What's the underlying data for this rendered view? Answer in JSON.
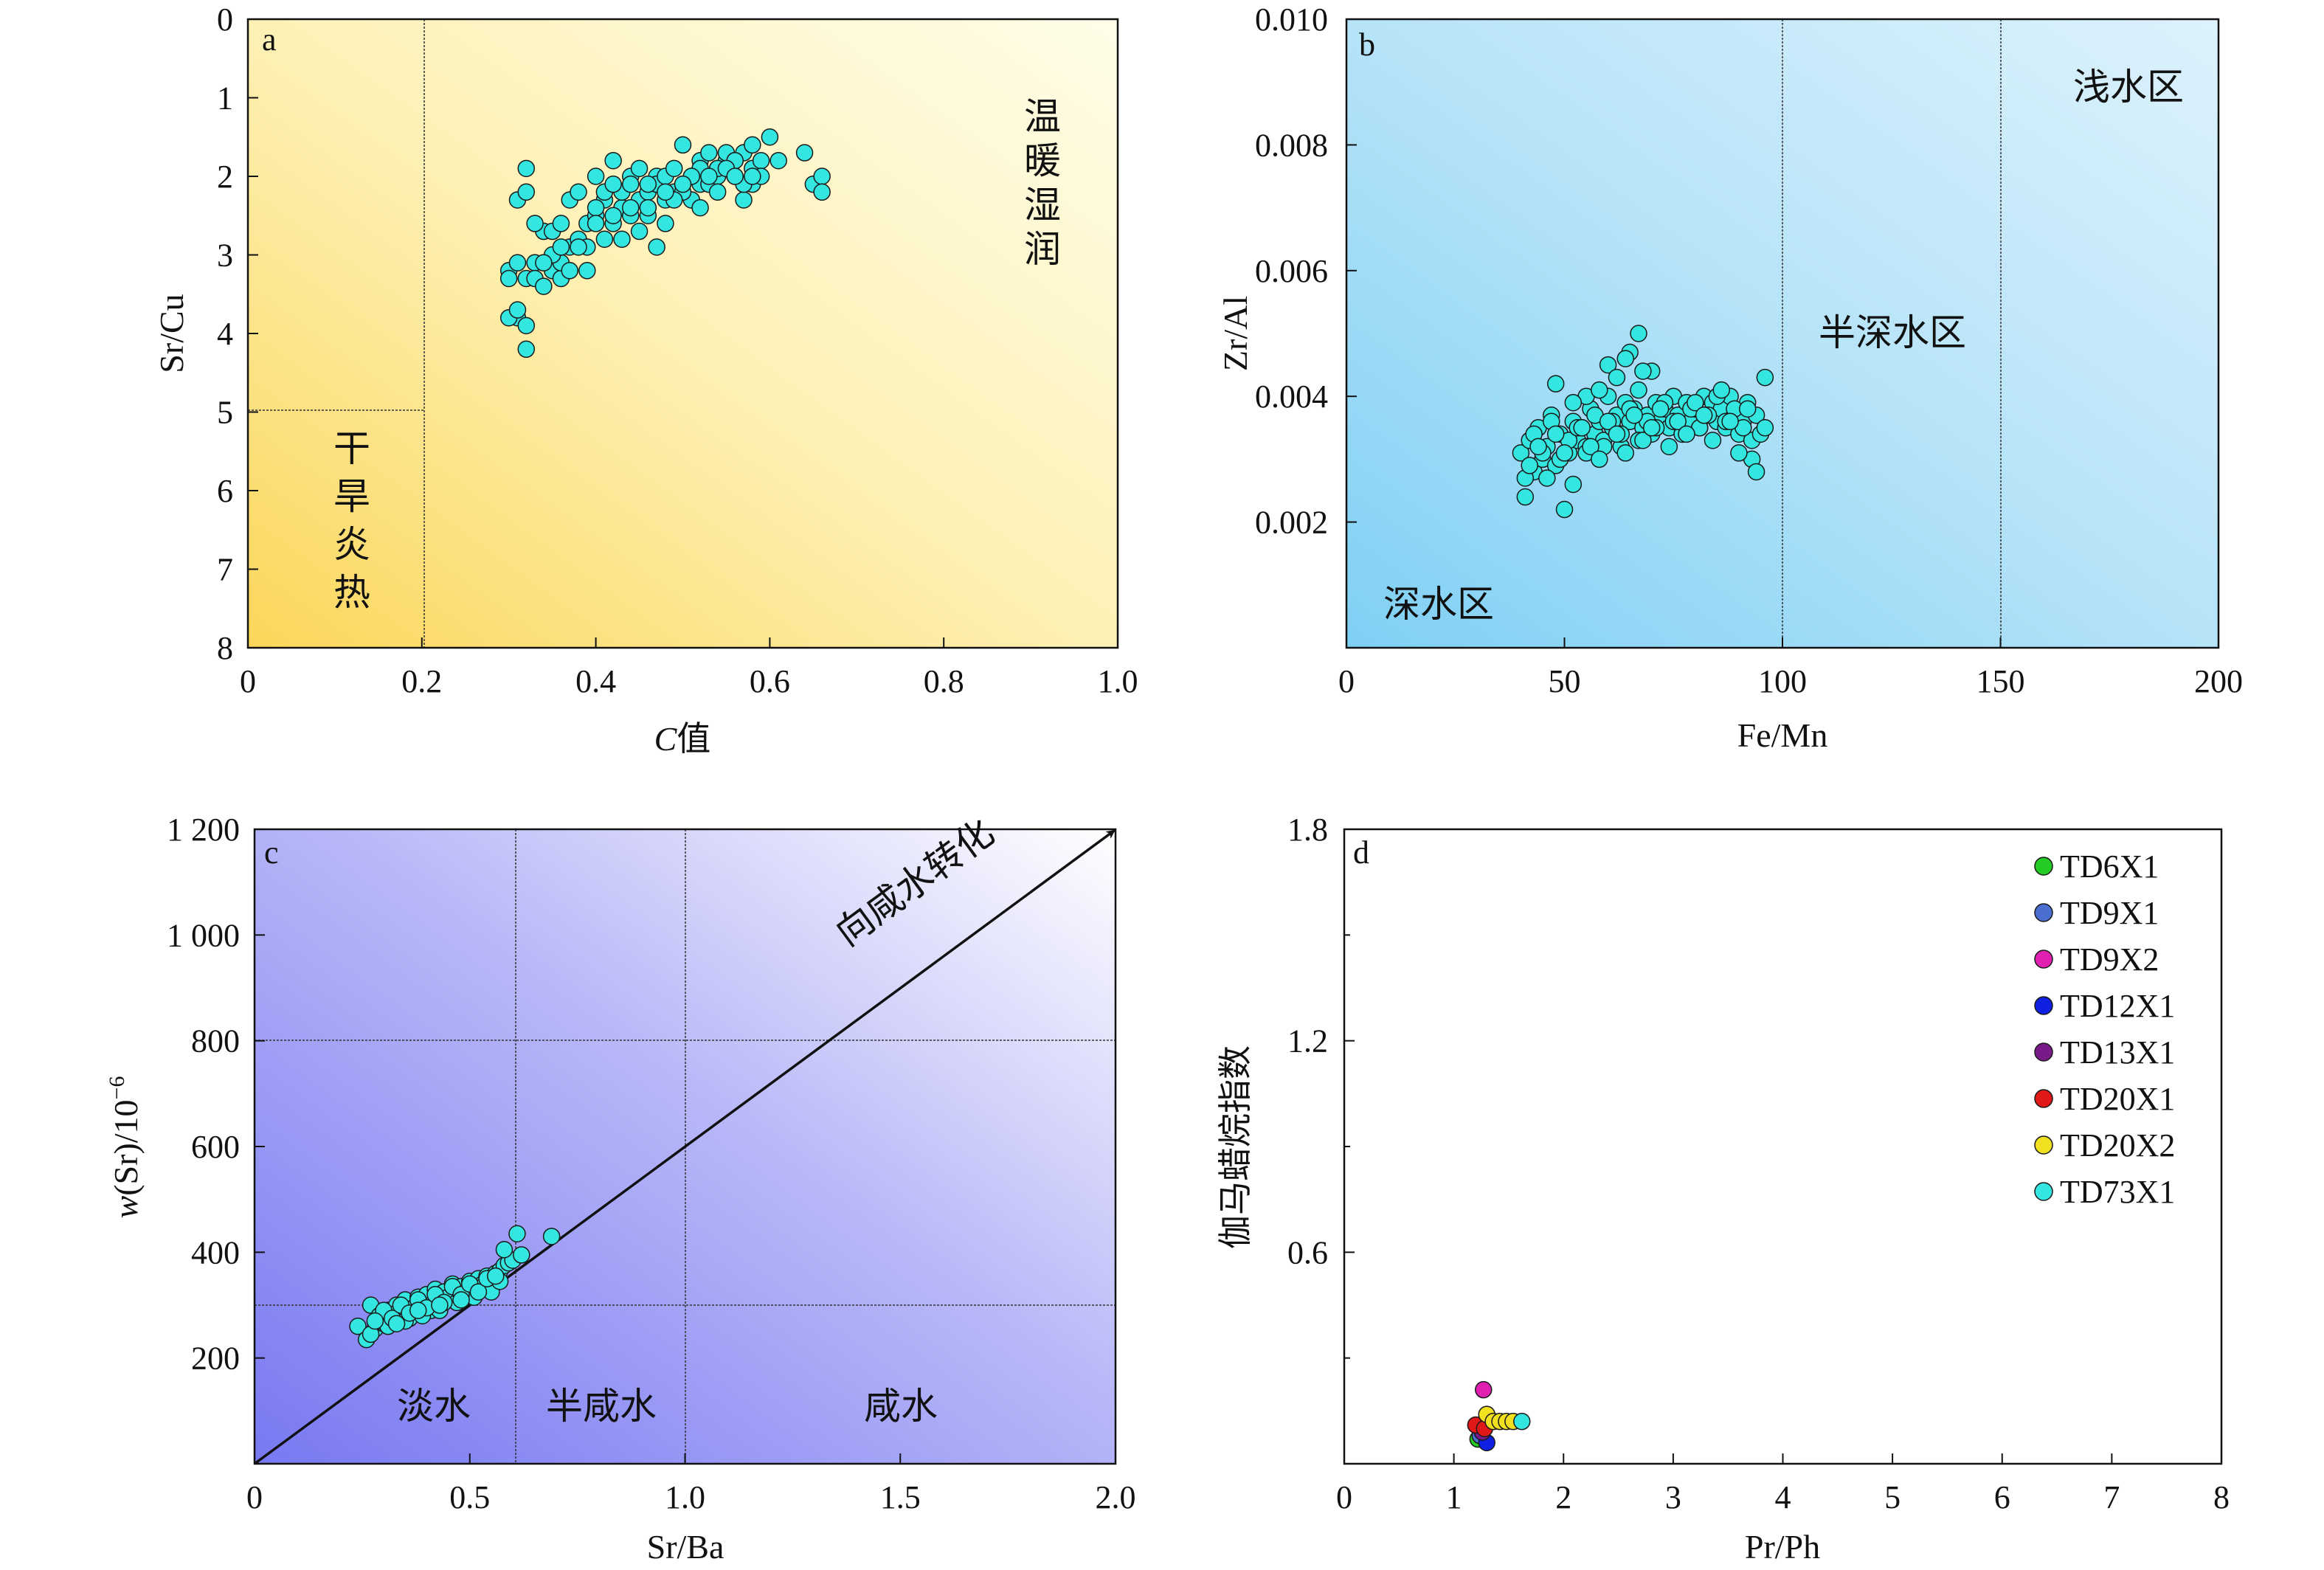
{
  "chart_data": [
    {
      "panel": "a",
      "type": "scatter",
      "xlabel_italic": "C",
      "xlabel_rest": "值",
      "ylabel": "Sr/Cu",
      "xlim": [
        0,
        1.0
      ],
      "ylim": [
        8,
        0
      ],
      "y_inverted": true,
      "xticks": [
        "0",
        "0.2",
        "0.4",
        "0.6",
        "0.8",
        "1.0"
      ],
      "yticks": [
        "0",
        "1",
        "2",
        "3",
        "4",
        "5",
        "6",
        "7",
        "8"
      ],
      "zones": [
        "温暖湿润",
        "干旱炎热"
      ],
      "point_color": "#33e6e0",
      "background": [
        "#fbd65a",
        "#fdf1b6",
        "#fffde9"
      ],
      "series": [
        {
          "x": [
            0.3,
            0.31,
            0.32,
            0.31,
            0.33,
            0.3,
            0.31,
            0.32,
            0.32,
            0.34,
            0.35,
            0.35,
            0.36,
            0.36,
            0.37,
            0.37,
            0.38,
            0.39,
            0.39,
            0.4,
            0.4,
            0.41,
            0.41,
            0.42,
            0.42,
            0.43,
            0.43,
            0.44,
            0.44,
            0.45,
            0.45,
            0.46,
            0.46,
            0.47,
            0.47,
            0.48,
            0.48,
            0.49,
            0.49,
            0.5,
            0.5,
            0.51,
            0.51,
            0.52,
            0.52,
            0.53,
            0.53,
            0.54,
            0.54,
            0.55,
            0.55,
            0.56,
            0.56,
            0.57,
            0.57,
            0.58,
            0.58,
            0.59,
            0.6,
            0.61,
            0.64,
            0.65,
            0.66,
            0.66,
            0.33,
            0.34,
            0.36,
            0.38,
            0.4,
            0.42,
            0.44,
            0.46,
            0.48,
            0.5,
            0.52,
            0.54,
            0.56,
            0.58,
            0.31,
            0.32,
            0.35,
            0.37,
            0.39,
            0.41,
            0.43,
            0.45,
            0.47,
            0.49,
            0.51,
            0.53,
            0.55,
            0.57,
            0.59,
            0.34,
            0.36,
            0.38,
            0.4,
            0.42,
            0.44,
            0.46,
            0.48,
            0.5,
            0.52,
            0.54,
            0.56,
            0.58,
            0.32,
            0.3,
            0.33
          ],
          "y": [
            3.2,
            3.1,
            3.3,
            3.8,
            3.1,
            3.8,
            2.3,
            2.2,
            1.9,
            2.7,
            2.7,
            3.2,
            3.3,
            2.6,
            2.3,
            2.9,
            2.2,
            2.6,
            3.2,
            2.0,
            2.5,
            2.3,
            2.2,
            1.8,
            2.6,
            2.4,
            2.2,
            2.0,
            2.1,
            1.9,
            2.3,
            2.5,
            2.2,
            2.0,
            2.1,
            2.0,
            2.6,
            2.2,
            1.9,
            2.1,
            1.6,
            2.0,
            2.3,
            1.8,
            2.1,
            1.7,
            2.1,
            1.9,
            2.0,
            1.8,
            1.7,
            2.0,
            1.8,
            1.7,
            2.3,
            1.9,
            2.1,
            1.8,
            1.5,
            1.8,
            1.7,
            2.1,
            2.0,
            2.2,
            3.3,
            3.4,
            3.1,
            2.8,
            2.4,
            2.1,
            2.5,
            2.4,
            2.3,
            2.2,
            1.9,
            1.9,
            1.8,
            1.6,
            3.7,
            3.9,
            3.0,
            3.2,
            2.9,
            2.8,
            2.8,
            2.7,
            2.9,
            2.3,
            2.0,
            2.0,
            1.9,
            2.1,
            2.0,
            3.1,
            2.9,
            2.9,
            2.6,
            2.5,
            2.4,
            2.1,
            2.2,
            2.1,
            2.4,
            2.2,
            2.0,
            2.0,
            4.2,
            3.3,
            2.6
          ]
        }
      ]
    },
    {
      "panel": "b",
      "type": "scatter",
      "xlabel": "Fe/Mn",
      "ylabel": "Zr/Al",
      "xlim": [
        0,
        200
      ],
      "ylim": [
        0,
        0.01
      ],
      "xticks": [
        "0",
        "50",
        "100",
        "150",
        "200"
      ],
      "yticks": [
        "0.002",
        "0.004",
        "0.006",
        "0.008",
        "0.010"
      ],
      "zones": [
        "深水区",
        "半深水区",
        "浅水区"
      ],
      "point_color": "#33e6e0",
      "background": [
        "#7fd0f4",
        "#b6e3f8",
        "#ddf2fc"
      ],
      "series": [
        {
          "x": [
            40,
            41,
            42,
            43,
            44,
            45,
            46,
            47,
            48,
            49,
            50,
            51,
            52,
            53,
            54,
            55,
            56,
            57,
            58,
            59,
            60,
            61,
            62,
            63,
            64,
            65,
            66,
            67,
            68,
            69,
            70,
            71,
            72,
            73,
            74,
            75,
            76,
            77,
            78,
            79,
            80,
            81,
            82,
            83,
            84,
            85,
            86,
            87,
            88,
            89,
            90,
            91,
            92,
            93,
            94,
            95,
            96,
            41,
            43,
            45,
            47,
            49,
            51,
            53,
            55,
            57,
            59,
            61,
            63,
            65,
            67,
            69,
            71,
            73,
            75,
            77,
            79,
            81,
            83,
            85,
            87,
            89,
            91,
            93,
            42,
            44,
            46,
            48,
            50,
            52,
            54,
            56,
            58,
            60,
            62,
            64,
            66,
            68,
            70,
            72,
            74,
            76,
            78,
            80,
            82,
            84,
            86,
            88,
            90,
            92,
            94,
            96,
            48,
            55,
            60,
            62,
            65,
            67,
            70,
            52,
            58,
            64,
            68
          ],
          "y": [
            0.0031,
            0.0024,
            0.0033,
            0.0028,
            0.0035,
            0.003,
            0.0032,
            0.0037,
            0.0029,
            0.0034,
            0.0022,
            0.0031,
            0.0036,
            0.0033,
            0.0035,
            0.0032,
            0.0038,
            0.0034,
            0.0036,
            0.0033,
            0.004,
            0.0035,
            0.0037,
            0.0032,
            0.0039,
            0.0036,
            0.0038,
            0.0041,
            0.0035,
            0.0037,
            0.0034,
            0.0039,
            0.0036,
            0.0038,
            0.0035,
            0.004,
            0.0037,
            0.0034,
            0.0039,
            0.0036,
            0.0038,
            0.0035,
            0.004,
            0.0037,
            0.0039,
            0.0036,
            0.0038,
            0.0035,
            0.004,
            0.0037,
            0.0034,
            0.0036,
            0.0039,
            0.0033,
            0.0037,
            0.0034,
            0.0043,
            0.0027,
            0.0034,
            0.0031,
            0.0036,
            0.003,
            0.0033,
            0.0035,
            0.0031,
            0.0037,
            0.0032,
            0.0036,
            0.0034,
            0.0038,
            0.0033,
            0.0036,
            0.0035,
            0.0039,
            0.0036,
            0.0034,
            0.0038,
            0.0035,
            0.0037,
            0.004,
            0.0036,
            0.0038,
            0.0035,
            0.003,
            0.0029,
            0.0032,
            0.0027,
            0.0034,
            0.0031,
            0.0026,
            0.0035,
            0.0032,
            0.003,
            0.0036,
            0.0034,
            0.0031,
            0.0037,
            0.0033,
            0.0035,
            0.0038,
            0.0032,
            0.0036,
            0.0034,
            0.0039,
            0.0037,
            0.0033,
            0.0041,
            0.0036,
            0.0031,
            0.0038,
            0.0028,
            0.0035,
            0.0042,
            0.004,
            0.0045,
            0.0043,
            0.0047,
            0.005,
            0.0044,
            0.0039,
            0.0041,
            0.0046,
            0.0044
          ]
        }
      ]
    },
    {
      "panel": "c",
      "type": "scatter",
      "xlabel": "Sr/Ba",
      "ylabel_italic": "w",
      "ylabel_rest": "(Sr)/10",
      "ylabel_sup": "−6",
      "xlim": [
        0,
        2.0
      ],
      "ylim": [
        0,
        1200
      ],
      "xticks": [
        "0",
        "0.5",
        "1.0",
        "1.5",
        "2.0"
      ],
      "yticks": [
        "200",
        "400",
        "600",
        "800",
        "1 000",
        "1 200"
      ],
      "zones": [
        "淡水",
        "半咸水",
        "咸水"
      ],
      "arrow_label": "向咸水转化",
      "point_color": "#33e6e0",
      "background": [
        "#7878f2",
        "#b8b8f8",
        "#ffffff"
      ],
      "series": [
        {
          "x": [
            0.24,
            0.26,
            0.27,
            0.28,
            0.29,
            0.3,
            0.31,
            0.32,
            0.33,
            0.34,
            0.35,
            0.36,
            0.37,
            0.38,
            0.39,
            0.4,
            0.41,
            0.42,
            0.43,
            0.44,
            0.45,
            0.46,
            0.47,
            0.48,
            0.49,
            0.5,
            0.51,
            0.52,
            0.53,
            0.54,
            0.55,
            0.56,
            0.57,
            0.58,
            0.59,
            0.6,
            0.61,
            0.62,
            0.69,
            0.27,
            0.29,
            0.31,
            0.33,
            0.35,
            0.37,
            0.39,
            0.41,
            0.43,
            0.45,
            0.47,
            0.49,
            0.51,
            0.53,
            0.55,
            0.57,
            0.3,
            0.32,
            0.34,
            0.36,
            0.38,
            0.4,
            0.42,
            0.44,
            0.46,
            0.48,
            0.5,
            0.52,
            0.54,
            0.56,
            0.28,
            0.33,
            0.38,
            0.43,
            0.48,
            0.58
          ],
          "y": [
            260,
            235,
            300,
            255,
            280,
            265,
            290,
            270,
            300,
            285,
            310,
            275,
            295,
            315,
            300,
            320,
            290,
            330,
            305,
            325,
            310,
            340,
            320,
            335,
            315,
            345,
            330,
            350,
            340,
            355,
            345,
            360,
            365,
            375,
            380,
            385,
            435,
            395,
            430,
            245,
            270,
            260,
            285,
            270,
            295,
            280,
            300,
            290,
            315,
            305,
            320,
            315,
            335,
            325,
            345,
            290,
            275,
            300,
            285,
            310,
            295,
            320,
            305,
            335,
            320,
            340,
            325,
            350,
            355,
            270,
            265,
            290,
            300,
            310,
            405
          ]
        }
      ]
    },
    {
      "panel": "d",
      "type": "scatter",
      "xlabel": "Pr/Ph",
      "ylabel": "伽马蜡烷指数",
      "xlim": [
        0,
        8
      ],
      "ylim": [
        0,
        1.8
      ],
      "xticks": [
        "0",
        "1",
        "2",
        "3",
        "4",
        "5",
        "6",
        "7",
        "8"
      ],
      "yticks": [
        "0.6",
        "1.2",
        "1.8"
      ],
      "series": [
        {
          "name": "TD6X1",
          "color": "#22cc22",
          "x": [
            1.22
          ],
          "y": [
            0.07
          ]
        },
        {
          "name": "TD9X1",
          "color": "#4a6fd0",
          "x": [
            1.24
          ],
          "y": [
            0.08
          ]
        },
        {
          "name": "TD9X2",
          "color": "#e020b0",
          "x": [
            1.27
          ],
          "y": [
            0.21
          ]
        },
        {
          "name": "TD12X1",
          "color": "#1020e0",
          "x": [
            1.3
          ],
          "y": [
            0.06
          ]
        },
        {
          "name": "TD13X1",
          "color": "#7a1a8a",
          "x": [
            1.26
          ],
          "y": [
            0.09
          ]
        },
        {
          "name": "TD20X1",
          "color": "#e01818",
          "x": [
            1.2,
            1.28
          ],
          "y": [
            0.11,
            0.1
          ]
        },
        {
          "name": "TD20X2",
          "color": "#f0e020",
          "x": [
            1.3,
            1.36,
            1.42,
            1.48,
            1.54
          ],
          "y": [
            0.14,
            0.12,
            0.12,
            0.12,
            0.12
          ]
        },
        {
          "name": "TD73X1",
          "color": "#33e6e0",
          "x": [
            1.62
          ],
          "y": [
            0.12
          ]
        }
      ]
    }
  ]
}
